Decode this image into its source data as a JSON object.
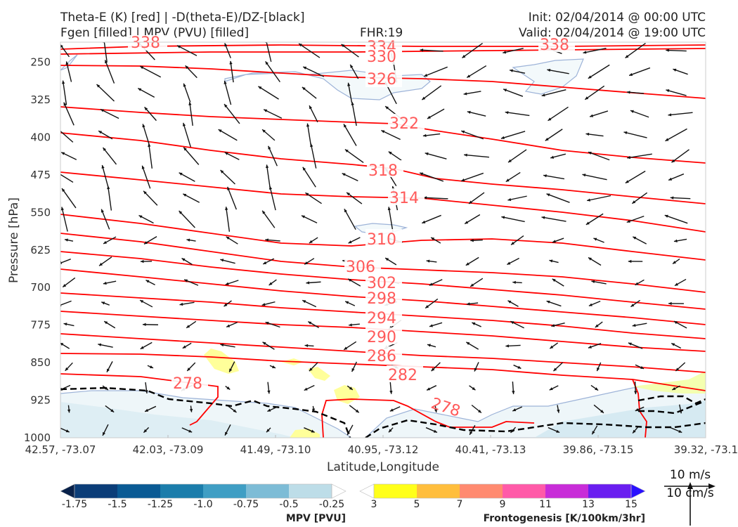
{
  "header": {
    "line1_left": "Theta-E (K) [red] | -D(theta-E)/DZ-[black]",
    "line2_left": "Fgen [filled] | MPV (PVU) [filled]",
    "fhr": "FHR:19",
    "init": "Init: 02/04/2014 @ 00:00 UTC",
    "valid": "Valid: 02/04/2014 @ 19:00 UTC"
  },
  "chart_data": {
    "type": "cross-section",
    "xlabel": "Latitude,Longitude",
    "ylabel": "Pressure [hPa]",
    "x_ticks": [
      "42.57, -73.07",
      "42.03, -73.09",
      "41.49, -73.10",
      "40.95, -73.12",
      "40.41, -73.13",
      "39.86, -73.15",
      "39.32, -73.1"
    ],
    "y_ticks": [
      250,
      325,
      400,
      475,
      550,
      625,
      700,
      775,
      850,
      925,
      1000
    ],
    "ylim": [
      1000,
      210
    ],
    "theta_e_contour_labels": [
      "338",
      "334",
      "330",
      "326",
      "322",
      "318",
      "314",
      "310",
      "306",
      "302",
      "298",
      "294",
      "290",
      "286",
      "282",
      "278",
      "278",
      "338"
    ],
    "colors": {
      "theta_e": "#ff0000",
      "gradient": "#000000",
      "mpv_outline": "#9db3d8"
    },
    "mpv_colorbar": {
      "label": "MPV [PVU]",
      "tick_labels": [
        "-1.75",
        "-1.5",
        "-1.25",
        "-1.0",
        "-0.75",
        "-0.5",
        "-0.25"
      ],
      "colors": [
        "#08214a",
        "#0b3d78",
        "#0a5a94",
        "#1b7dab",
        "#3f9ec4",
        "#7dbcd6",
        "#bddde8",
        "#ffffff"
      ]
    },
    "fgen_colorbar": {
      "label": "Frontogenesis [K/100km/3hr]",
      "tick_labels": [
        "3",
        "5",
        "7",
        "9",
        "11",
        "13",
        "15"
      ],
      "colors": [
        "#ffffff",
        "#ffff1a",
        "#ffbe3d",
        "#ff8a70",
        "#ff5aa8",
        "#c82cd8",
        "#6a1ef0",
        "#2a10ff"
      ]
    }
  },
  "legend": {
    "ref_vector_1": "10 m/s",
    "ref_vector_2": "10 cm/s"
  }
}
